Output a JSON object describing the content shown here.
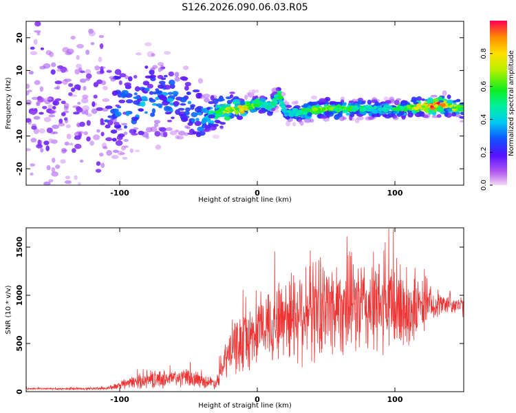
{
  "chart_data": [
    {
      "type": "heatmap",
      "title": "S126.2026.090.06.03.R05",
      "xlabel": "Height of straight line (km)",
      "ylabel": "Frequency (Hz)",
      "xlim": [
        -168,
        150
      ],
      "ylim": [
        -25,
        25
      ],
      "xticks": [
        -100,
        0,
        100
      ],
      "yticks": [
        -20,
        -10,
        0,
        10,
        20
      ],
      "colorbar": {
        "label": "Normalized spectral amplitude",
        "range": [
          0,
          1
        ],
        "ticks": [
          0.0,
          0.2,
          0.4,
          0.6,
          0.8
        ]
      },
      "ridge": {
        "x": [
          -168,
          -130,
          -100,
          -80,
          -60,
          -50,
          -40,
          -30,
          -20,
          -10,
          0,
          10,
          16,
          20,
          30,
          40,
          50,
          60,
          70,
          80,
          90,
          100,
          110,
          120,
          130,
          140,
          150
        ],
        "y": [
          -2,
          -1.5,
          -1,
          1,
          1,
          -1,
          -4,
          -3,
          -2,
          -1.5,
          0,
          -1,
          3,
          -3,
          -3,
          -2,
          -1.5,
          -2,
          -1.5,
          -1.5,
          -2,
          -2,
          -1.5,
          -1,
          -0.5,
          -0.8,
          -2
        ],
        "amp": [
          0.15,
          0.2,
          0.3,
          0.35,
          0.35,
          0.3,
          0.4,
          0.5,
          0.7,
          0.75,
          0.5,
          0.45,
          0.5,
          0.4,
          0.45,
          0.6,
          0.65,
          0.6,
          0.5,
          0.45,
          0.4,
          0.5,
          0.6,
          0.75,
          0.9,
          0.7,
          0.6
        ]
      }
    },
    {
      "type": "line",
      "xlabel": "Height of straight line (km)",
      "ylabel": "SNR (10 * v/v)",
      "xlim": [
        -168,
        150
      ],
      "ylim": [
        0,
        1700
      ],
      "xticks": [
        -100,
        0,
        100
      ],
      "yticks": [
        0,
        500,
        1000,
        1500
      ],
      "color": "#ee3333",
      "envelope": {
        "x": [
          -168,
          -130,
          -110,
          -100,
          -90,
          -80,
          -70,
          -60,
          -50,
          -40,
          -30,
          -25,
          -20,
          -15,
          -10,
          -5,
          0,
          10,
          20,
          30,
          40,
          50,
          60,
          70,
          80,
          90,
          100,
          110,
          120,
          130,
          140,
          150
        ],
        "base": [
          30,
          30,
          35,
          60,
          100,
          120,
          130,
          140,
          140,
          110,
          90,
          250,
          420,
          480,
          520,
          560,
          620,
          700,
          780,
          830,
          860,
          880,
          900,
          900,
          880,
          880,
          870,
          860,
          880,
          900,
          920,
          880
        ],
        "amp": [
          12,
          12,
          20,
          45,
          80,
          100,
          110,
          110,
          110,
          80,
          70,
          180,
          300,
          350,
          380,
          400,
          350,
          450,
          550,
          600,
          650,
          600,
          600,
          600,
          600,
          600,
          600,
          550,
          300,
          150,
          120,
          120
        ]
      }
    }
  ]
}
